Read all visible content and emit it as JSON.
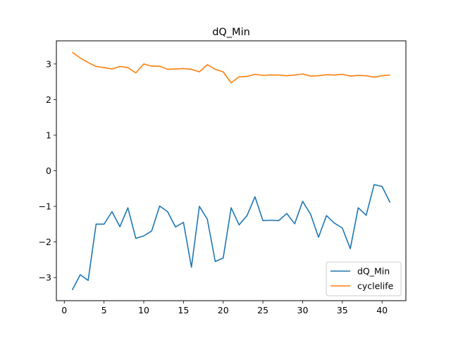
{
  "chart_data": {
    "type": "line",
    "title": "dQ_Min",
    "xlabel": "",
    "ylabel": "",
    "xlim": [
      -1,
      43
    ],
    "ylim": [
      -3.65,
      3.65
    ],
    "xticks": [
      0,
      5,
      10,
      15,
      20,
      25,
      30,
      35,
      40
    ],
    "yticks": [
      -3,
      -2,
      -1,
      0,
      1,
      2,
      3
    ],
    "grid": false,
    "legend_position": "lower-right",
    "x": [
      1,
      2,
      3,
      4,
      5,
      6,
      7,
      8,
      9,
      10,
      11,
      12,
      13,
      14,
      15,
      16,
      17,
      18,
      19,
      20,
      21,
      22,
      23,
      24,
      25,
      26,
      27,
      28,
      29,
      30,
      31,
      32,
      33,
      34,
      35,
      36,
      37,
      38,
      39,
      40,
      41
    ],
    "series": [
      {
        "name": "dQ_Min",
        "color": "#1f77b4",
        "values": [
          -3.35,
          -2.92,
          -3.08,
          -1.5,
          -1.5,
          -1.15,
          -1.57,
          -1.04,
          -1.9,
          -1.83,
          -1.69,
          -0.99,
          -1.15,
          -1.58,
          -1.45,
          -2.71,
          -1.0,
          -1.36,
          -2.55,
          -2.45,
          -1.04,
          -1.52,
          -1.26,
          -0.73,
          -1.4,
          -1.39,
          -1.4,
          -1.2,
          -1.49,
          -0.86,
          -1.22,
          -1.87,
          -1.26,
          -1.47,
          -1.61,
          -2.19,
          -1.04,
          -1.25,
          -0.39,
          -0.44,
          -0.89
        ]
      },
      {
        "name": "cyclelife",
        "color": "#ff7f0e",
        "values": [
          3.33,
          3.17,
          3.04,
          2.93,
          2.9,
          2.86,
          2.93,
          2.9,
          2.75,
          3.0,
          2.94,
          2.94,
          2.85,
          2.86,
          2.87,
          2.85,
          2.78,
          2.98,
          2.85,
          2.78,
          2.47,
          2.64,
          2.65,
          2.71,
          2.68,
          2.69,
          2.69,
          2.67,
          2.69,
          2.72,
          2.66,
          2.67,
          2.7,
          2.69,
          2.71,
          2.66,
          2.68,
          2.67,
          2.63,
          2.67,
          2.69
        ]
      }
    ]
  }
}
